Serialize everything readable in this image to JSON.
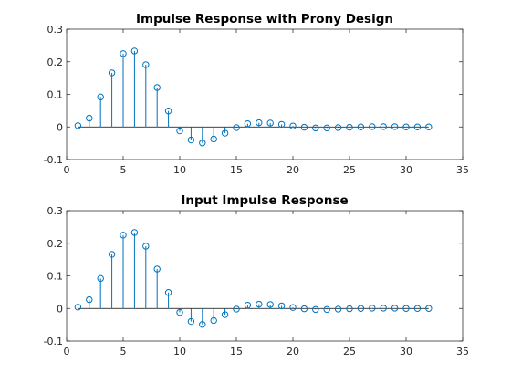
{
  "chart_data": [
    {
      "type": "stem",
      "title": "Impulse Response with Prony Design",
      "xlabel": "",
      "ylabel": "",
      "xlim": [
        0,
        35
      ],
      "ylim": [
        -0.1,
        0.3
      ],
      "xticks": [
        0,
        5,
        10,
        15,
        20,
        25,
        30,
        35
      ],
      "yticks": [
        -0.1,
        0,
        0.1,
        0.2,
        0.3
      ],
      "ytick_labels": [
        "-0.1",
        "0",
        "0.1",
        "0.2",
        "0.3"
      ],
      "grid": false,
      "color": "#0072BD",
      "marker": "circle",
      "x": [
        1,
        2,
        3,
        4,
        5,
        6,
        7,
        8,
        9,
        10,
        11,
        12,
        13,
        14,
        15,
        16,
        17,
        18,
        19,
        20,
        21,
        22,
        23,
        24,
        25,
        26,
        27,
        28,
        29,
        30,
        31,
        32
      ],
      "y": [
        0.004,
        0.027,
        0.092,
        0.166,
        0.225,
        0.233,
        0.191,
        0.121,
        0.049,
        -0.012,
        -0.04,
        -0.049,
        -0.037,
        -0.019,
        -0.002,
        0.01,
        0.013,
        0.012,
        0.008,
        0.003,
        -0.001,
        -0.003,
        -0.003,
        -0.002,
        -0.001,
        0.0,
        0.001,
        0.001,
        0.001,
        0.0,
        0.0,
        0.0
      ]
    },
    {
      "type": "stem",
      "title": "Input Impulse Response",
      "xlabel": "",
      "ylabel": "",
      "xlim": [
        0,
        35
      ],
      "ylim": [
        -0.1,
        0.3
      ],
      "xticks": [
        0,
        5,
        10,
        15,
        20,
        25,
        30,
        35
      ],
      "yticks": [
        -0.1,
        0,
        0.1,
        0.2,
        0.3
      ],
      "ytick_labels": [
        "-0.1",
        "0",
        "0.1",
        "0.2",
        "0.3"
      ],
      "grid": false,
      "color": "#0072BD",
      "marker": "circle",
      "x": [
        1,
        2,
        3,
        4,
        5,
        6,
        7,
        8,
        9,
        10,
        11,
        12,
        13,
        14,
        15,
        16,
        17,
        18,
        19,
        20,
        21,
        22,
        23,
        24,
        25,
        26,
        27,
        28,
        29,
        30,
        31,
        32
      ],
      "y": [
        0.004,
        0.027,
        0.092,
        0.166,
        0.225,
        0.233,
        0.191,
        0.121,
        0.049,
        -0.012,
        -0.04,
        -0.049,
        -0.037,
        -0.019,
        -0.002,
        0.01,
        0.013,
        0.012,
        0.008,
        0.003,
        -0.001,
        -0.003,
        -0.003,
        -0.002,
        -0.001,
        0.0,
        0.001,
        0.001,
        0.001,
        0.0,
        0.0,
        0.0
      ]
    }
  ]
}
